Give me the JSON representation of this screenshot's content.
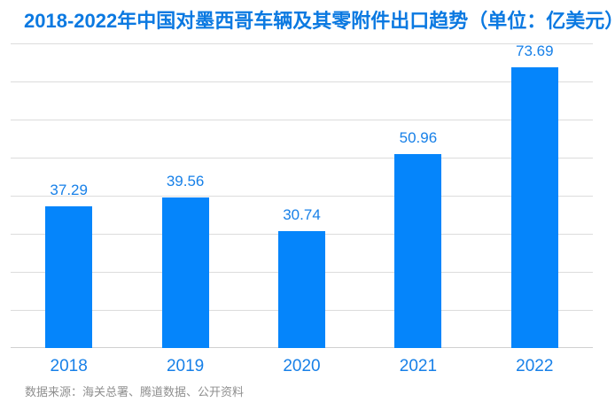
{
  "title": "2018-2022年中国对墨西哥车辆及其零附件出口趋势（单位：亿美元）",
  "source_note": "数据来源：海关总署、腾道数据、公开资料",
  "colors": {
    "background": "#ffffff",
    "title": "#0b79e1",
    "bar": "#0585fb",
    "label": "#1780e8",
    "gridline": "#dcdcdc",
    "axis": "#d0d0d0",
    "source": "#8f8f8f"
  },
  "chart_data": {
    "type": "bar",
    "title": "2018-2022年中国对墨西哥车辆及其零附件出口趋势（单位：亿美元）",
    "categories": [
      "2018",
      "2019",
      "2020",
      "2021",
      "2022"
    ],
    "values": [
      37.29,
      39.56,
      30.74,
      50.96,
      73.69
    ],
    "value_labels": [
      "37.29",
      "39.56",
      "30.74",
      "50.96",
      "73.69"
    ],
    "unit": "亿美元",
    "xlabel": "",
    "ylabel": "",
    "ylim": [
      0,
      80
    ],
    "grid_interval": 10,
    "grid": true,
    "legend": false,
    "y_tick_labels_shown": false,
    "bar_color": "#0585fb",
    "source": "数据来源：海关总署、腾道数据、公开资料"
  }
}
